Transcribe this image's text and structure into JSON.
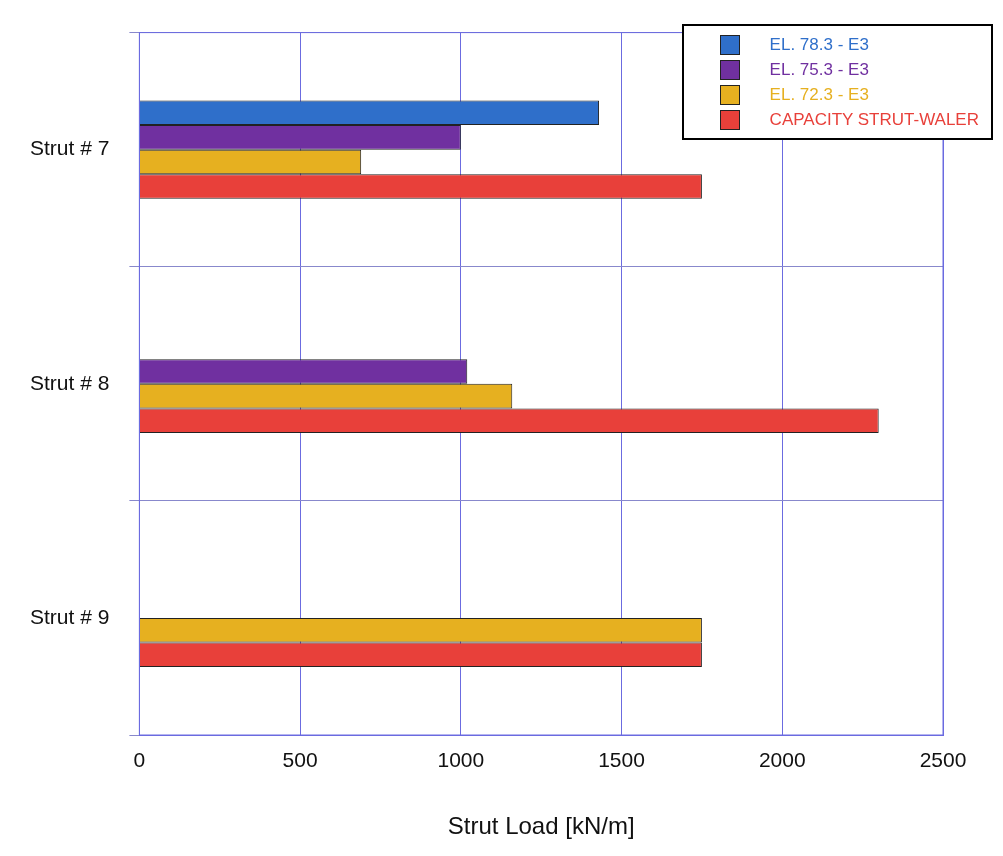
{
  "chart_data": {
    "type": "bar",
    "orientation": "horizontal",
    "xlabel": "Strut Load [kN/m]",
    "categories": [
      "Strut # 7",
      "Strut # 8",
      "Strut # 9"
    ],
    "series": [
      {
        "name": "EL. 78.3 - E3",
        "color": "#2f6fca",
        "values": [
          1430,
          null,
          null
        ]
      },
      {
        "name": "EL. 75.3 - E3",
        "color": "#7030a0",
        "values": [
          1000,
          1020,
          null
        ]
      },
      {
        "name": "EL. 72.3 - E3",
        "color": "#e6b020",
        "values": [
          690,
          1160,
          1750
        ]
      },
      {
        "name": "CAPACITY STRUT-WALER",
        "color": "#e8403a",
        "values": [
          1750,
          2300,
          1750
        ]
      }
    ],
    "xlim": [
      0,
      2500
    ],
    "xticks": [
      0,
      500,
      1000,
      1500,
      2000,
      2500
    ],
    "grid": true,
    "legend": "top right"
  }
}
